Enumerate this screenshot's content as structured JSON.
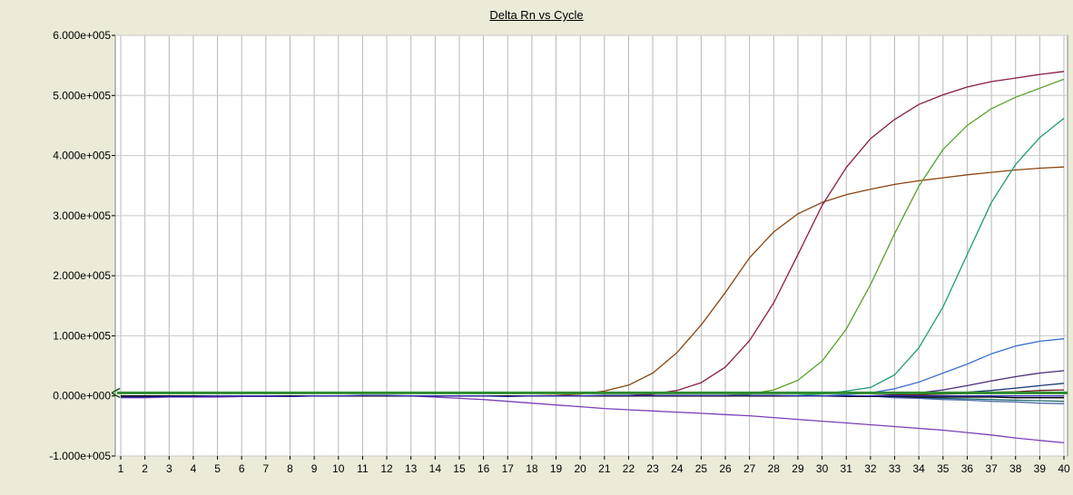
{
  "chart_data": {
    "type": "line",
    "title": "Delta Rn vs Cycle",
    "xlabel": "",
    "ylabel": "",
    "x": [
      1,
      2,
      3,
      4,
      5,
      6,
      7,
      8,
      9,
      10,
      11,
      12,
      13,
      14,
      15,
      16,
      17,
      18,
      19,
      20,
      21,
      22,
      23,
      24,
      25,
      26,
      27,
      28,
      29,
      30,
      31,
      32,
      33,
      34,
      35,
      36,
      37,
      38,
      39,
      40
    ],
    "xlim": [
      1,
      40
    ],
    "ylim": [
      -100000,
      600000
    ],
    "yticks": [
      -100000,
      0,
      100000,
      200000,
      300000,
      400000,
      500000,
      600000
    ],
    "ytick_labels": [
      "-1.000e+005",
      "0.000e+000",
      "1.000e+005",
      "2.000e+005",
      "3.000e+005",
      "4.000e+005",
      "5.000e+005",
      "6.000e+005"
    ],
    "grid": true,
    "threshold": {
      "value": 5000,
      "color": "#2e8b2e"
    },
    "series": [
      {
        "color": "#8b4513",
        "values": [
          0,
          0,
          0,
          0,
          0,
          0,
          0,
          0,
          0,
          0,
          0,
          0,
          0,
          0,
          0,
          0,
          0,
          0,
          1000,
          3000,
          8000,
          18000,
          38000,
          72000,
          118000,
          172000,
          230000,
          273000,
          303000,
          322000,
          335000,
          344000,
          352000,
          358000,
          363000,
          368000,
          372000,
          376000,
          379000,
          381000
        ]
      },
      {
        "color": "#8b1a4a",
        "values": [
          0,
          0,
          0,
          0,
          0,
          0,
          0,
          0,
          0,
          0,
          0,
          0,
          0,
          0,
          0,
          0,
          0,
          0,
          0,
          0,
          0,
          1000,
          3000,
          9000,
          22000,
          48000,
          92000,
          155000,
          235000,
          317000,
          380000,
          428000,
          460000,
          485000,
          501000,
          514000,
          523000,
          529000,
          535000,
          540000
        ]
      },
      {
        "color": "#5aa02c",
        "values": [
          0,
          0,
          0,
          0,
          0,
          0,
          0,
          0,
          0,
          0,
          0,
          0,
          0,
          0,
          0,
          0,
          0,
          0,
          0,
          0,
          0,
          0,
          0,
          0,
          0,
          1000,
          3000,
          10000,
          26000,
          58000,
          111000,
          185000,
          270000,
          349000,
          410000,
          450000,
          478000,
          497000,
          512000,
          527000
        ]
      },
      {
        "color": "#1e9a7a",
        "values": [
          0,
          0,
          0,
          0,
          0,
          0,
          0,
          0,
          0,
          0,
          0,
          0,
          0,
          0,
          0,
          0,
          0,
          0,
          0,
          0,
          0,
          0,
          0,
          0,
          0,
          0,
          0,
          0,
          1000,
          3000,
          8000,
          14000,
          35000,
          80000,
          148000,
          235000,
          322000,
          385000,
          430000,
          462000
        ]
      },
      {
        "color": "#3a6fd0",
        "values": [
          0,
          0,
          0,
          0,
          0,
          0,
          0,
          0,
          0,
          0,
          0,
          0,
          0,
          0,
          0,
          0,
          0,
          0,
          0,
          0,
          0,
          0,
          0,
          0,
          0,
          0,
          0,
          0,
          0,
          0,
          2000,
          5000,
          12000,
          23000,
          38000,
          53000,
          70000,
          83000,
          91000,
          95000
        ]
      },
      {
        "color": "#4b2a7a",
        "values": [
          0,
          0,
          0,
          0,
          0,
          0,
          0,
          0,
          0,
          0,
          0,
          0,
          0,
          0,
          0,
          0,
          0,
          0,
          0,
          0,
          0,
          0,
          0,
          0,
          0,
          0,
          0,
          0,
          0,
          0,
          0,
          0,
          2000,
          5000,
          10000,
          17000,
          25000,
          32000,
          38000,
          42000
        ]
      },
      {
        "color": "#1a3a7a",
        "values": [
          0,
          0,
          0,
          0,
          0,
          0,
          0,
          0,
          0,
          0,
          0,
          0,
          0,
          0,
          0,
          0,
          0,
          0,
          0,
          0,
          0,
          0,
          0,
          0,
          0,
          0,
          0,
          0,
          0,
          0,
          0,
          0,
          1000,
          2000,
          4000,
          6000,
          9000,
          13000,
          17000,
          21000
        ]
      },
      {
        "color": "#1a6b6b",
        "values": [
          0,
          0,
          0,
          0,
          0,
          0,
          0,
          0,
          0,
          0,
          0,
          0,
          0,
          0,
          0,
          0,
          0,
          0,
          0,
          0,
          0,
          0,
          0,
          0,
          0,
          0,
          0,
          0,
          0,
          0,
          0,
          0,
          -2000,
          -3000,
          -4000,
          -5000,
          -6000,
          -7000,
          -8000,
          -9000
        ]
      },
      {
        "color": "#4a6aa8",
        "values": [
          0,
          0,
          0,
          0,
          0,
          0,
          0,
          0,
          0,
          0,
          0,
          0,
          0,
          0,
          0,
          0,
          0,
          0,
          0,
          0,
          0,
          0,
          0,
          0,
          0,
          0,
          0,
          0,
          0,
          0,
          0,
          0,
          -3000,
          -4000,
          -6000,
          -7000,
          -9000,
          -10000,
          -12000,
          -13000
        ]
      },
      {
        "color": "#6a1a1a",
        "values": [
          0,
          0,
          0,
          0,
          0,
          0,
          0,
          0,
          0,
          0,
          0,
          0,
          0,
          0,
          0,
          0,
          0,
          0,
          0,
          0,
          0,
          0,
          0,
          0,
          0,
          0,
          0,
          0,
          0,
          0,
          0,
          0,
          1000,
          2000,
          3000,
          4000,
          6000,
          7000,
          9000,
          10000
        ]
      },
      {
        "color": "#7b3fb8",
        "values": [
          -3000,
          -3000,
          -2000,
          -2000,
          -2000,
          -1000,
          -1000,
          -1000,
          0,
          0,
          0,
          0,
          0,
          -2000,
          -4000,
          -6000,
          -9000,
          -12000,
          -15000,
          -18000,
          -21000,
          -23000,
          -25000,
          -27000,
          -29000,
          -31000,
          -33000,
          -36000,
          -39000,
          -42000,
          -45000,
          -48000,
          -51000,
          -54000,
          -57000,
          -61000,
          -65000,
          -70000,
          -74000,
          -78000
        ]
      },
      {
        "color": "#000000",
        "values": [
          0,
          0,
          0,
          0,
          0,
          0,
          0,
          0,
          0,
          0,
          0,
          0,
          0,
          0,
          0,
          0,
          0,
          0,
          0,
          0,
          0,
          0,
          0,
          0,
          0,
          0,
          0,
          0,
          0,
          0,
          -1000,
          -1000,
          -1000,
          -2000,
          -2000,
          -2000,
          -2000,
          -3000,
          -3000,
          -3000
        ]
      },
      {
        "color": "#2a2aa8",
        "values": [
          -2000,
          -2000,
          -1000,
          -1000,
          0,
          0,
          0,
          -1000,
          0,
          0,
          1000,
          1000,
          0,
          0,
          0,
          0,
          -1000,
          0,
          0,
          0,
          1000,
          1000,
          1000,
          1000,
          1000,
          1000,
          1000,
          1000,
          0,
          0,
          0,
          0,
          0,
          0,
          0,
          0,
          0,
          0,
          0,
          0
        ]
      }
    ]
  }
}
